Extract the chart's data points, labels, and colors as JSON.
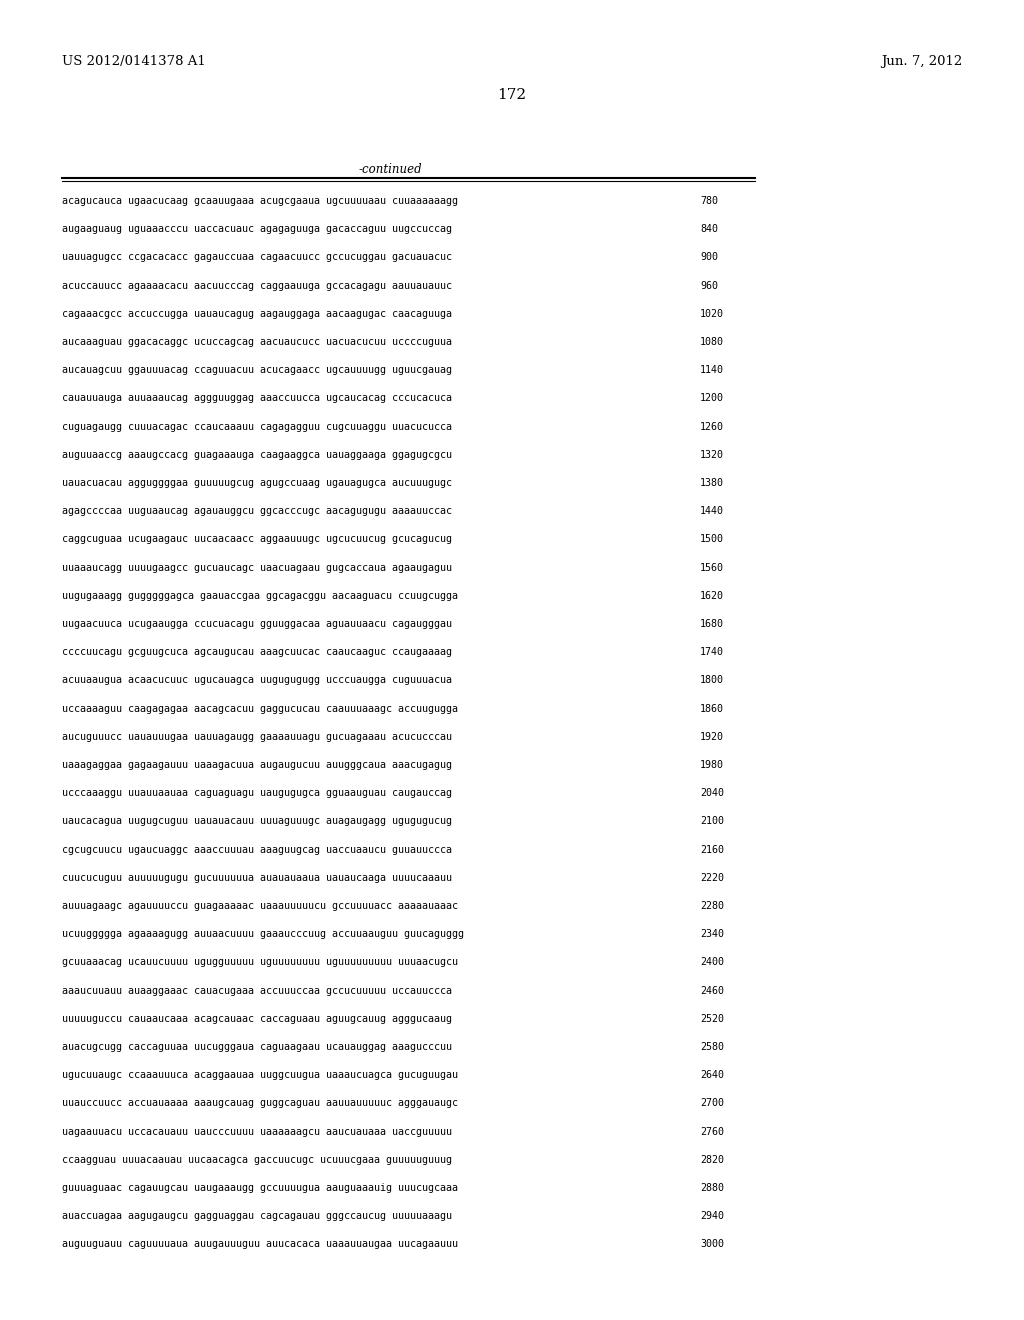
{
  "header_left": "US 2012/0141378 A1",
  "header_right": "Jun. 7, 2012",
  "page_number": "172",
  "continued_label": "-continued",
  "background_color": "#ffffff",
  "text_color": "#000000",
  "seq_font_size": 7.2,
  "header_font_size": 9.5,
  "page_num_font_size": 11,
  "continued_font_size": 8.5,
  "num_font_size": 7.2,
  "sequence_data": [
    {
      "seq": "acagucauca ugaacucaag gcaauugaaa acugcgaaua ugcuuuuaau cuuaaaaaagg",
      "num": "780"
    },
    {
      "seq": "augaaguaug uguaaacccu uaccacuauc agagaguuga gacaccaguu uugccuccag",
      "num": "840"
    },
    {
      "seq": "uauuagugcc ccgacacacc gagauccuaa cagaacuucc gccucuggau gacuauacuc",
      "num": "900"
    },
    {
      "seq": "acuccauucc agaaaacacu aacuucccag caggaauuga gccacagagu aauuauauuc",
      "num": "960"
    },
    {
      "seq": "cagaaacgcc accuccugga uauaucagug aagauggaga aacaagugac caacaguuga",
      "num": "1020"
    },
    {
      "seq": "aucaaaguau ggacacaggc ucuccagcag aacuaucucc uacuacucuu uccccuguua",
      "num": "1080"
    },
    {
      "seq": "aucauagcuu ggauuuacag ccaguuacuu acucagaacc ugcauuuugg uguucgauag",
      "num": "1140"
    },
    {
      "seq": "cauauuauga auuaaaucag aggguuggag aaaccuucca ugcaucacag cccucacuca",
      "num": "1200"
    },
    {
      "seq": "cuguagaugg cuuuacagac ccaucaaauu cagagagguu cugcuuaggu uuacucucca",
      "num": "1260"
    },
    {
      "seq": "auguuaaccg aaaugccacg guagaaauga caagaaggca uauaggaaga ggagugcgcu",
      "num": "1320"
    },
    {
      "seq": "uauacuacau agguggggaa guuuuugcug agugccuaag ugauagugca aucuuugugc",
      "num": "1380"
    },
    {
      "seq": "agagccccaa uuguaaucag agauauggcu ggcacccugc aacagugugu aaaauuccac",
      "num": "1440"
    },
    {
      "seq": "caggcuguaa ucugaagauc uucaacaacc aggaauuugc ugcucuucug gcucagucug",
      "num": "1500"
    },
    {
      "seq": "uuaaaucagg uuuugaagcc gucuaucagc uaacuagaau gugcaccaua agaaugaguu",
      "num": "1560"
    },
    {
      "seq": "uugugaaagg gugggggagca gaauaccgaa ggcagacggu aacaaguacu ccuugcugga",
      "num": "1620"
    },
    {
      "seq": "uugaacuuca ucugaaugga ccucuacagu gguuggacaa aguauuaacu cagaugggau",
      "num": "1680"
    },
    {
      "seq": "ccccuucagu gcguugcuca agcaugucau aaagcuucac caaucaaguc ccaugaaaag",
      "num": "1740"
    },
    {
      "seq": "acuuaaugua acaacucuuc ugucauagca uugugugugg ucccuaugga cuguuuacua",
      "num": "1800"
    },
    {
      "seq": "uccaaaaguu caagagagaa aacagcacuu gaggucucau caauuuaaagc accuugugga",
      "num": "1860"
    },
    {
      "seq": "aucuguuucc uauauuugaa uauuagaugg gaaaauuagu gucuagaaau acucucccau",
      "num": "1920"
    },
    {
      "seq": "uaaagaggaa gagaagauuu uaaagacuua augaugucuu auugggcaua aaacugagug",
      "num": "1980"
    },
    {
      "seq": "ucccaaaggu uuauuaauaa caguaguagu uaugugugca gguaauguau caugauccag",
      "num": "2040"
    },
    {
      "seq": "uaucacagua uugugcuguu uauauacauu uuuaguuugc auagaugagg ugugugucug",
      "num": "2100"
    },
    {
      "seq": "cgcugcuucu ugaucuaggc aaaccuuuau aaaguugcag uaccuaaucu guuauuccca",
      "num": "2160"
    },
    {
      "seq": "cuucucuguu auuuuugugu gucuuuuuua auauauaaua uauaucaaga uuuucaaauu",
      "num": "2220"
    },
    {
      "seq": "auuuagaagc agauuuuccu guagaaaaac uaaauuuuucu gccuuuuacc aaaaauaaac",
      "num": "2280"
    },
    {
      "seq": "ucuuggggga agaaaagugg auuaacuuuu gaaaucccuug accuuaauguu guucaguggg",
      "num": "2340"
    },
    {
      "seq": "gcuuaaacag ucauucuuuu ugugguuuuu uguuuuuuuu uguuuuuuuuu uuuaacugcu",
      "num": "2400"
    },
    {
      "seq": "aaaucuuauu auaaggaaac cauacugaaa accuuuccaa gccucuuuuu uccauuccca",
      "num": "2460"
    },
    {
      "seq": "uuuuuguccu cauaaucaaa acagcauaac caccaguaau aguugcauug agggucaaug",
      "num": "2520"
    },
    {
      "seq": "auacugcugg caccaguuaa uucugggaua caguaagaau ucauauggag aaagucccuu",
      "num": "2580"
    },
    {
      "seq": "ugucuuaugc ccaaauuuca acaggaauaa uuggcuugua uaaaucuagca gucuguugau",
      "num": "2640"
    },
    {
      "seq": "uuauccuucc accuauaaaa aaaugcauag guggcaguau aauuauuuuuc agggauaugc",
      "num": "2700"
    },
    {
      "seq": "uagaauuacu uccacauauu uaucccuuuu uaaaaaagcu aaucuauaaa uaccguuuuu",
      "num": "2760"
    },
    {
      "seq": "ccaagguau uuuacaauau uucaacagca gaccuucugc ucuuucgaaa guuuuuguuug",
      "num": "2820"
    },
    {
      "seq": "guuuaguaac cagauugcau uaugaaaugg gccuuuugua aauguaaauig uuucugcaaa",
      "num": "2880"
    },
    {
      "seq": "auaccuagaa aagugaugcu gagguaggau cagcagauau gggccaucug uuuuuaaagu",
      "num": "2940"
    },
    {
      "seq": "auguuguauu caguuuuaua auugauuuguu auucacaca uaaauuaugaa uucagaauuu",
      "num": "3000"
    }
  ]
}
